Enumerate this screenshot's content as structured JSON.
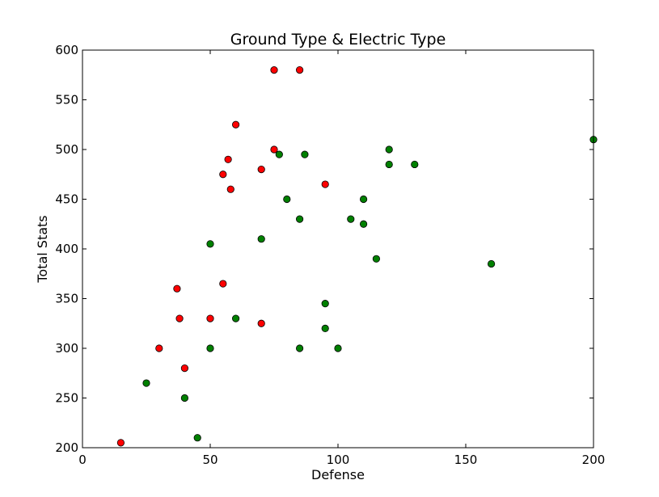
{
  "chart_data": {
    "type": "scatter",
    "title": "Ground Type & Electric Type",
    "xlabel": "Defense",
    "ylabel": "Total Stats",
    "xlim": [
      0,
      200
    ],
    "ylim": [
      200,
      600
    ],
    "xticks": [
      "0",
      "50",
      "100",
      "150",
      "200"
    ],
    "yticks": [
      "200",
      "250",
      "300",
      "350",
      "400",
      "450",
      "500",
      "550",
      "600"
    ],
    "grid": false,
    "series": [
      {
        "color": "#ff0000",
        "points": [
          {
            "x": 15,
            "y": 205
          },
          {
            "x": 30,
            "y": 300
          },
          {
            "x": 37,
            "y": 360
          },
          {
            "x": 38,
            "y": 330
          },
          {
            "x": 40,
            "y": 280
          },
          {
            "x": 50,
            "y": 330
          },
          {
            "x": 55,
            "y": 475
          },
          {
            "x": 55,
            "y": 365
          },
          {
            "x": 57,
            "y": 490
          },
          {
            "x": 58,
            "y": 460
          },
          {
            "x": 60,
            "y": 525
          },
          {
            "x": 70,
            "y": 480
          },
          {
            "x": 70,
            "y": 325
          },
          {
            "x": 75,
            "y": 580
          },
          {
            "x": 75,
            "y": 500
          },
          {
            "x": 85,
            "y": 580
          },
          {
            "x": 95,
            "y": 465
          }
        ]
      },
      {
        "color": "#008000",
        "points": [
          {
            "x": 25,
            "y": 265
          },
          {
            "x": 40,
            "y": 250
          },
          {
            "x": 45,
            "y": 210
          },
          {
            "x": 50,
            "y": 405
          },
          {
            "x": 50,
            "y": 300
          },
          {
            "x": 60,
            "y": 330
          },
          {
            "x": 70,
            "y": 410
          },
          {
            "x": 77,
            "y": 495
          },
          {
            "x": 80,
            "y": 450
          },
          {
            "x": 85,
            "y": 430
          },
          {
            "x": 85,
            "y": 300
          },
          {
            "x": 87,
            "y": 495
          },
          {
            "x": 95,
            "y": 345
          },
          {
            "x": 95,
            "y": 320
          },
          {
            "x": 100,
            "y": 300
          },
          {
            "x": 105,
            "y": 430
          },
          {
            "x": 110,
            "y": 450
          },
          {
            "x": 110,
            "y": 425
          },
          {
            "x": 115,
            "y": 390
          },
          {
            "x": 120,
            "y": 500
          },
          {
            "x": 120,
            "y": 485
          },
          {
            "x": 130,
            "y": 485
          },
          {
            "x": 160,
            "y": 385
          },
          {
            "x": 200,
            "y": 510
          }
        ]
      }
    ]
  }
}
